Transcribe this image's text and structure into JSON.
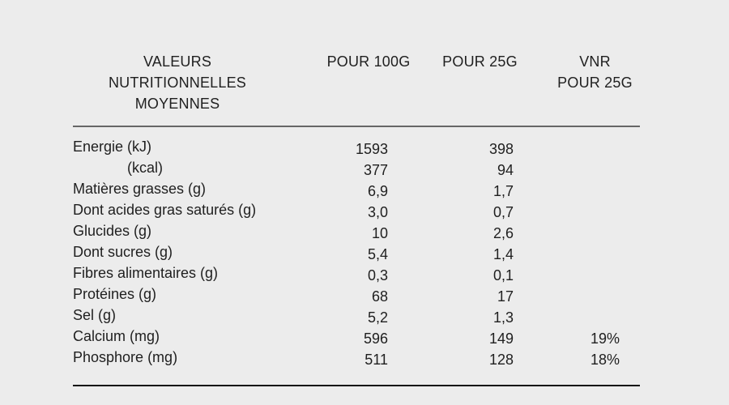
{
  "page": {
    "background_color": "#ececec",
    "text_color": "#1f1f1f",
    "rule_top_color": "#666666",
    "rule_bottom_color": "#111111"
  },
  "table": {
    "headers": {
      "label": "VALEURS NUTRITIONNELLES MOYENNES",
      "per_100g": "POUR 100G",
      "per_25g": "POUR 25G",
      "vnr_line1": "VNR",
      "vnr_line2": "POUR 25G"
    },
    "rows": [
      {
        "label": "Energie (kJ)",
        "per_100g": "1593",
        "per_25g": "398",
        "vnr": "",
        "indent": false
      },
      {
        "label": "(kcal)",
        "per_100g": "377",
        "per_25g": "94",
        "vnr": "",
        "indent": true
      },
      {
        "label": "Matières grasses (g)",
        "per_100g": "6,9",
        "per_25g": "1,7",
        "vnr": "",
        "indent": false
      },
      {
        "label": "Dont acides gras saturés (g)",
        "per_100g": "3,0",
        "per_25g": "0,7",
        "vnr": "",
        "indent": false
      },
      {
        "label": "Glucides (g)",
        "per_100g": "10",
        "per_25g": "2,6",
        "vnr": "",
        "indent": false
      },
      {
        "label": "Dont sucres (g)",
        "per_100g": "5,4",
        "per_25g": "1,4",
        "vnr": "",
        "indent": false
      },
      {
        "label": "Fibres alimentaires (g)",
        "per_100g": "0,3",
        "per_25g": "0,1",
        "vnr": "",
        "indent": false
      },
      {
        "label": "Protéines (g)",
        "per_100g": "68",
        "per_25g": "17",
        "vnr": "",
        "indent": false
      },
      {
        "label": "Sel (g)",
        "per_100g": "5,2",
        "per_25g": "1,3",
        "vnr": "",
        "indent": false
      },
      {
        "label": "Calcium (mg)",
        "per_100g": "596",
        "per_25g": "149",
        "vnr": "19%",
        "indent": false
      },
      {
        "label": "Phosphore (mg)",
        "per_100g": "511",
        "per_25g": "128",
        "vnr": "18%",
        "indent": false
      }
    ]
  }
}
